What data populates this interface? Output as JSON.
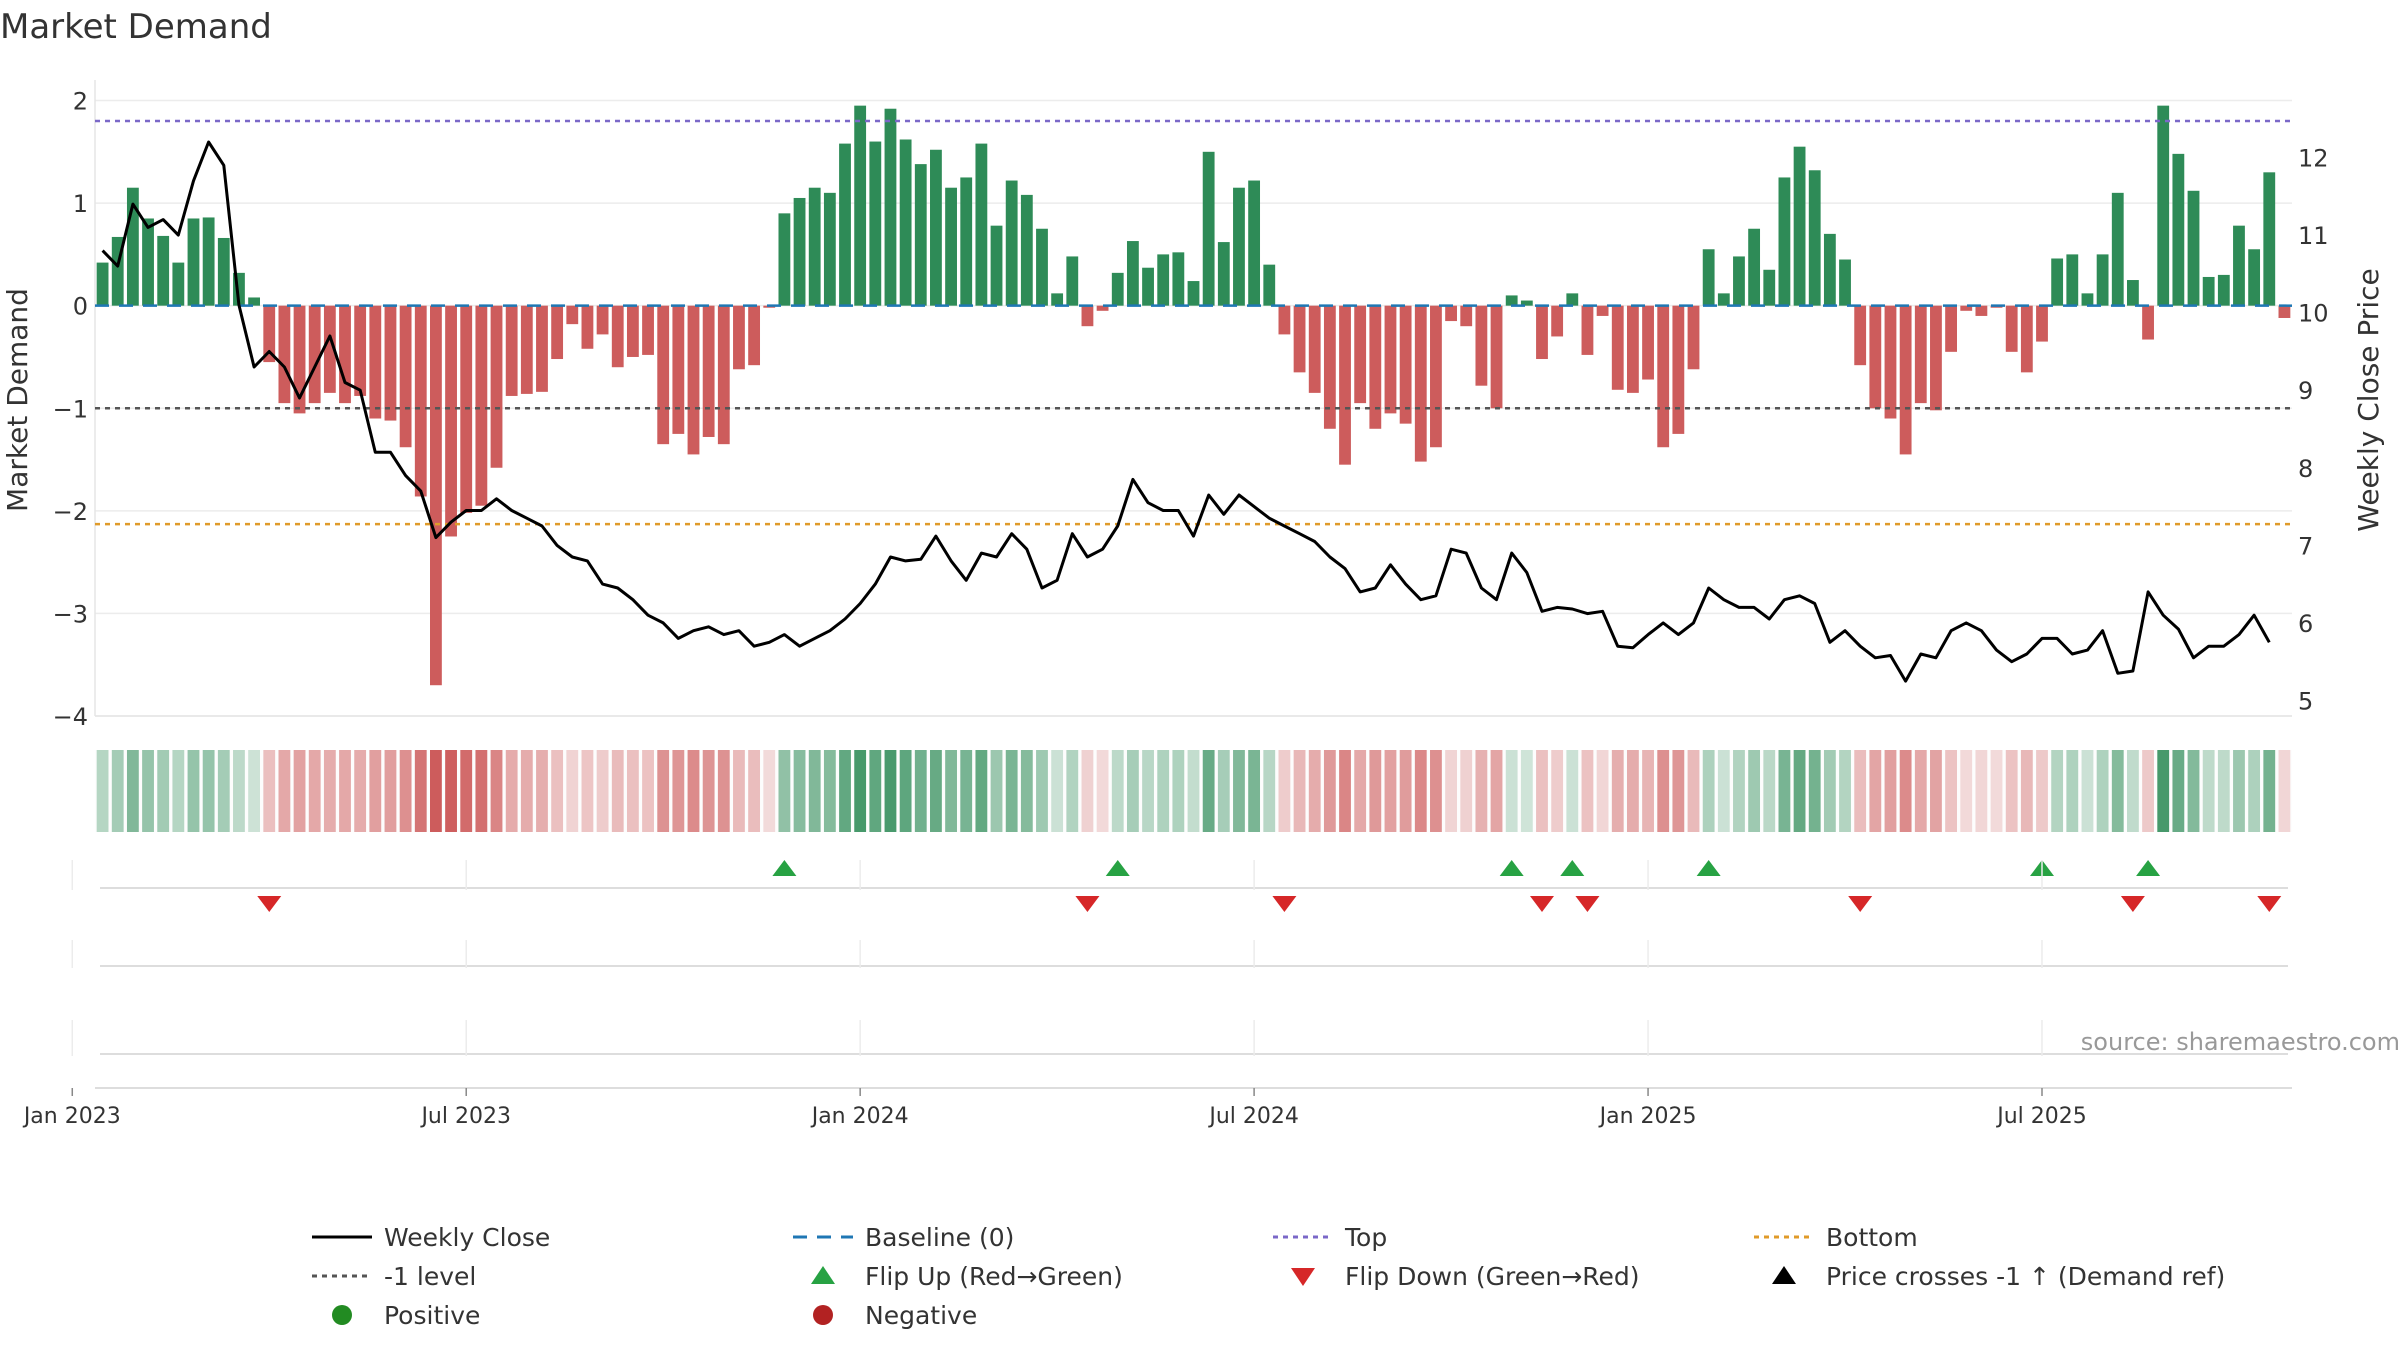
{
  "title": "Market Demand",
  "source_note": "source: sharemaestro.com",
  "chart_data": {
    "type": "bar",
    "title": "Market Demand",
    "ylabel": "Market Demand",
    "y2label": "Weekly Close Price",
    "ylim": [
      -4,
      2.2
    ],
    "y2lim": [
      4.8,
      13.0
    ],
    "y_ticks": [
      2,
      1,
      0,
      -1,
      -2,
      -3,
      -4
    ],
    "y_tick_labels": [
      "2",
      "1",
      "0",
      "−1",
      "−2",
      "−3",
      "−4"
    ],
    "y2_ticks": [
      12,
      11,
      10,
      9,
      8,
      7,
      6,
      5
    ],
    "y2_tick_labels": [
      "12",
      "11",
      "10",
      "9",
      "8",
      "7",
      "6",
      "5"
    ],
    "x_tick_weeks": [
      0,
      26,
      52,
      78,
      104,
      130
    ],
    "x_tick_labels": [
      "Jan 2023",
      "Jul 2023",
      "Jan 2024",
      "Jul 2024",
      "Jan 2025",
      "Jul 2025"
    ],
    "week_offset": -2,
    "reference_lines": {
      "top": 1.8,
      "minus_one": -1.0,
      "bottom": -2.13,
      "baseline": 0
    },
    "colors": {
      "positive": "#2e8b57",
      "negative": "#cd5c5c",
      "price": "#000000",
      "top": "#7b68c8",
      "minus_one": "#555555",
      "bottom": "#e09b2a",
      "baseline": "#1f77b4",
      "flip_up": "#27a243",
      "flip_down": "#d62728",
      "legend_positive": "#228b22",
      "legend_negative": "#b22222"
    },
    "demand": [
      0.42,
      0.67,
      1.15,
      0.85,
      0.68,
      0.42,
      0.85,
      0.86,
      0.66,
      0.32,
      0.08,
      -0.55,
      -0.95,
      -1.05,
      -0.95,
      -0.85,
      -0.95,
      -0.88,
      -1.1,
      -1.12,
      -1.38,
      -1.86,
      -3.7,
      -2.25,
      -2.02,
      -1.95,
      -1.58,
      -0.88,
      -0.86,
      -0.84,
      -0.52,
      -0.18,
      -0.42,
      -0.28,
      -0.6,
      -0.5,
      -0.48,
      -1.35,
      -1.25,
      -1.45,
      -1.28,
      -1.35,
      -0.62,
      -0.58,
      -0.02,
      0.9,
      1.05,
      1.15,
      1.1,
      1.58,
      1.95,
      1.6,
      1.92,
      1.62,
      1.38,
      1.52,
      1.15,
      1.25,
      1.58,
      0.78,
      1.22,
      1.08,
      0.75,
      0.12,
      0.48,
      -0.2,
      -0.05,
      0.32,
      0.63,
      0.37,
      0.5,
      0.52,
      0.24,
      1.5,
      0.62,
      1.15,
      1.22,
      0.4,
      -0.28,
      -0.65,
      -0.85,
      -1.2,
      -1.55,
      -0.95,
      -1.2,
      -1.05,
      -1.15,
      -1.52,
      -1.38,
      -0.15,
      -0.2,
      -0.78,
      -1.0,
      0.1,
      0.05,
      -0.52,
      -0.3,
      0.12,
      -0.48,
      -0.1,
      -0.82,
      -0.85,
      -0.72,
      -1.38,
      -1.25,
      -0.62,
      0.55,
      0.12,
      0.48,
      0.75,
      0.35,
      1.25,
      1.55,
      1.32,
      0.7,
      0.45,
      -0.58,
      -1.0,
      -1.1,
      -1.45,
      -0.95,
      -1.02,
      -0.45,
      -0.05,
      -0.1,
      -0.02,
      -0.45,
      -0.65,
      -0.35,
      0.46,
      0.5,
      0.12,
      0.5,
      1.1,
      0.25,
      -0.33,
      1.95,
      1.48,
      1.12,
      0.28,
      0.3,
      0.78,
      0.55,
      1.3,
      -0.12
    ],
    "price": [
      10.8,
      10.6,
      11.4,
      11.1,
      11.2,
      11.0,
      11.7,
      12.2,
      11.9,
      10.1,
      9.3,
      9.5,
      9.3,
      8.9,
      9.3,
      9.7,
      9.1,
      9.0,
      8.2,
      8.2,
      7.9,
      7.7,
      7.1,
      7.3,
      7.45,
      7.45,
      7.6,
      7.45,
      7.35,
      7.25,
      7.0,
      6.85,
      6.8,
      6.5,
      6.45,
      6.3,
      6.1,
      6.0,
      5.8,
      5.9,
      5.95,
      5.85,
      5.9,
      5.7,
      5.75,
      5.85,
      5.7,
      5.8,
      5.9,
      6.05,
      6.25,
      6.5,
      6.85,
      6.8,
      6.82,
      7.12,
      6.8,
      6.55,
      6.9,
      6.85,
      7.15,
      6.95,
      6.45,
      6.55,
      7.15,
      6.85,
      6.95,
      7.25,
      7.85,
      7.55,
      7.45,
      7.45,
      7.12,
      7.65,
      7.4,
      7.65,
      7.5,
      7.35,
      7.25,
      7.15,
      7.05,
      6.85,
      6.7,
      6.4,
      6.45,
      6.75,
      6.5,
      6.3,
      6.35,
      6.95,
      6.9,
      6.45,
      6.3,
      6.9,
      6.65,
      6.15,
      6.2,
      6.18,
      6.12,
      6.15,
      5.7,
      5.68,
      5.85,
      6.0,
      5.85,
      6.0,
      6.45,
      6.3,
      6.2,
      6.2,
      6.05,
      6.3,
      6.35,
      6.25,
      5.75,
      5.9,
      5.7,
      5.55,
      5.58,
      5.25,
      5.6,
      5.55,
      5.9,
      6.0,
      5.9,
      5.65,
      5.5,
      5.6,
      5.8,
      5.8,
      5.6,
      5.65,
      5.9,
      5.35,
      5.38,
      6.4,
      6.1,
      5.92,
      5.55,
      5.7,
      5.7,
      5.85,
      6.1,
      5.75
    ],
    "flip_up_weeks": [
      45,
      67,
      93,
      97,
      106,
      128,
      135
    ],
    "flip_down_weeks": [
      11,
      65,
      78,
      95,
      98,
      116,
      134,
      143
    ],
    "legend": [
      {
        "label": "Weekly Close",
        "marker": "solid-line",
        "color": "#000000"
      },
      {
        "label": "Baseline (0)",
        "marker": "dashed-line",
        "color": "#1f77b4"
      },
      {
        "label": "Top",
        "marker": "dotted-line",
        "color": "#7b68c8"
      },
      {
        "label": "Bottom",
        "marker": "dotted-line",
        "color": "#e09b2a"
      },
      {
        "label": "-1 level",
        "marker": "dotted-line",
        "color": "#555555"
      },
      {
        "label": "Flip Up (Red→Green)",
        "marker": "triangle-up",
        "color": "#27a243"
      },
      {
        "label": "Flip Down (Green→Red)",
        "marker": "triangle-down",
        "color": "#d62728"
      },
      {
        "label": "Price crosses -1 ↑ (Demand ref)",
        "marker": "triangle-up",
        "color": "#000000"
      },
      {
        "label": "Positive",
        "marker": "circle",
        "color": "#228b22"
      },
      {
        "label": "Negative",
        "marker": "circle",
        "color": "#b22222"
      }
    ]
  }
}
